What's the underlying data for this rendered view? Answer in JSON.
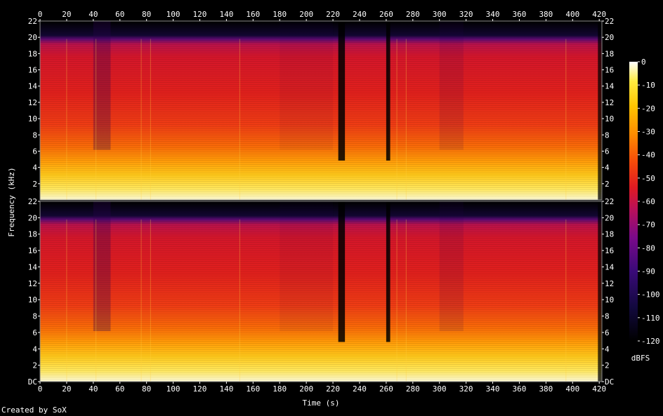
{
  "chart_data": {
    "type": "heatmap",
    "title": "",
    "xlabel": "Time (s)",
    "ylabel": "Frequency (kHz)",
    "xlim": [
      0,
      422
    ],
    "ylim": [
      0,
      22
    ],
    "x_ticks": [
      0,
      20,
      40,
      60,
      80,
      100,
      120,
      140,
      160,
      180,
      200,
      220,
      240,
      260,
      280,
      300,
      320,
      340,
      360,
      380,
      400,
      420
    ],
    "y_ticks_top": [
      "2",
      "4",
      "6",
      "8",
      "10",
      "12",
      "14",
      "16",
      "18",
      "20",
      "22"
    ],
    "y_ticks_bottom": [
      "DC",
      "2",
      "4",
      "6",
      "8",
      "10",
      "12",
      "14",
      "16",
      "18",
      "20",
      "22"
    ],
    "channels": 2,
    "colorbar": {
      "label": "dBFS",
      "ticks": [
        "0",
        "-10",
        "-20",
        "-30",
        "-40",
        "-50",
        "-60",
        "-70",
        "-80",
        "-90",
        "-100",
        "-110",
        "-120"
      ],
      "range": [
        -120,
        0
      ]
    },
    "cutoff_khz": 20,
    "silent_gaps_s": [
      [
        224,
        229
      ],
      [
        260,
        263
      ]
    ],
    "fade_out_end_s": 422
  },
  "footer": "Created by SoX",
  "colors": {
    "palette": [
      "#000000",
      "#0b0a3c",
      "#3a0a78",
      "#7a0a8a",
      "#b8105a",
      "#e01a22",
      "#f54a0a",
      "#ff8c00",
      "#ffc400",
      "#ffeb40",
      "#fffde0"
    ]
  }
}
